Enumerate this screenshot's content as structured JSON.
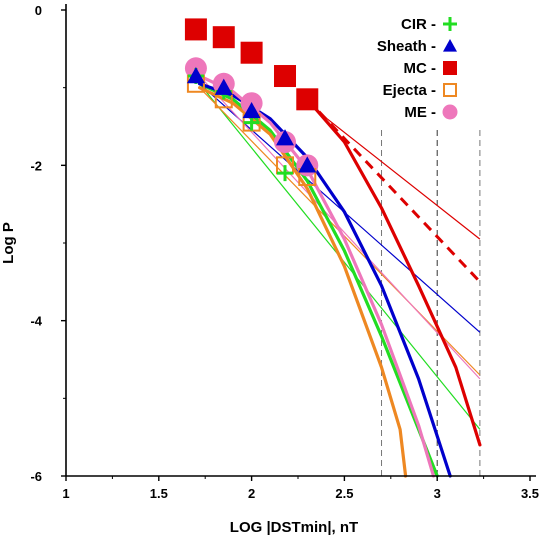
{
  "chart_data": {
    "type": "scatter",
    "title": "",
    "xlabel": "LOG |DSTmin|, nT",
    "ylabel": "Log P",
    "xlim": [
      1,
      3.5
    ],
    "ylim": [
      -6,
      0
    ],
    "x_ticks": [
      1,
      1.5,
      2,
      2.5,
      3,
      3.5
    ],
    "x_tick_labels": [
      "1",
      "1.5",
      "2",
      "2.5",
      "3",
      "3.5"
    ],
    "y_ticks": [
      0,
      -2,
      -4,
      -6
    ],
    "y_tick_labels": [
      "0",
      "-2",
      "-4",
      "-6"
    ],
    "grid": false,
    "legend_position": "top-right",
    "vertical_reference_lines": [
      2.7,
      3.0,
      3.23
    ],
    "series": [
      {
        "name": "CIR -",
        "color": "#22dd22",
        "marker": "plus",
        "points": [
          [
            1.7,
            -0.85
          ],
          [
            1.85,
            -1.05
          ],
          [
            2.0,
            -1.45
          ],
          [
            2.18,
            -2.1
          ]
        ],
        "fit_line": [
          [
            1.72,
            -0.95
          ],
          [
            3.23,
            -5.4
          ]
        ],
        "fit_curve": [
          [
            1.72,
            -0.95
          ],
          [
            1.9,
            -1.15
          ],
          [
            2.1,
            -1.55
          ],
          [
            2.3,
            -2.2
          ],
          [
            2.5,
            -3.1
          ],
          [
            2.7,
            -4.2
          ],
          [
            2.9,
            -5.4
          ],
          [
            3.0,
            -6.0
          ]
        ]
      },
      {
        "name": "Sheath -",
        "color": "#0000cc",
        "marker": "triangle",
        "points": [
          [
            1.7,
            -0.85
          ],
          [
            1.85,
            -1.0
          ],
          [
            2.0,
            -1.3
          ],
          [
            2.18,
            -1.65
          ],
          [
            2.3,
            -2.0
          ]
        ],
        "fit_line": [
          [
            1.72,
            -0.95
          ],
          [
            3.23,
            -4.15
          ]
        ],
        "fit_curve": [
          [
            1.72,
            -0.95
          ],
          [
            1.9,
            -1.1
          ],
          [
            2.1,
            -1.4
          ],
          [
            2.3,
            -1.9
          ],
          [
            2.5,
            -2.6
          ],
          [
            2.7,
            -3.55
          ],
          [
            2.9,
            -4.75
          ],
          [
            3.07,
            -6.0
          ]
        ]
      },
      {
        "name": "MC -",
        "color": "#dd0000",
        "marker": "square",
        "points": [
          [
            1.7,
            -0.25
          ],
          [
            1.85,
            -0.35
          ],
          [
            2.0,
            -0.55
          ],
          [
            2.18,
            -0.85
          ],
          [
            2.3,
            -1.15
          ]
        ],
        "fit_line": [
          [
            2.3,
            -1.2
          ],
          [
            3.23,
            -2.95
          ]
        ],
        "fit_dashed": [
          [
            2.3,
            -1.15
          ],
          [
            3.23,
            -3.5
          ]
        ],
        "fit_curve": [
          [
            2.3,
            -1.15
          ],
          [
            2.5,
            -1.7
          ],
          [
            2.7,
            -2.55
          ],
          [
            2.9,
            -3.55
          ],
          [
            3.1,
            -4.6
          ],
          [
            3.23,
            -5.6
          ]
        ]
      },
      {
        "name": "Ejecta -",
        "color": "#ee8822",
        "marker": "open-square",
        "points": [
          [
            1.7,
            -0.95
          ],
          [
            1.85,
            -1.15
          ],
          [
            2.0,
            -1.45
          ],
          [
            2.18,
            -2.0
          ],
          [
            2.3,
            -2.15
          ]
        ],
        "fit_line": [
          [
            1.72,
            -1.0
          ],
          [
            3.23,
            -4.7
          ]
        ],
        "fit_curve": [
          [
            1.72,
            -1.0
          ],
          [
            1.9,
            -1.2
          ],
          [
            2.1,
            -1.6
          ],
          [
            2.3,
            -2.3
          ],
          [
            2.5,
            -3.3
          ],
          [
            2.7,
            -4.6
          ],
          [
            2.8,
            -5.4
          ],
          [
            2.83,
            -6.0
          ]
        ]
      },
      {
        "name": "ME -",
        "color": "#ee77bb",
        "marker": "circle",
        "points": [
          [
            1.7,
            -0.75
          ],
          [
            1.85,
            -0.95
          ],
          [
            2.0,
            -1.2
          ],
          [
            2.18,
            -1.7
          ],
          [
            2.3,
            -2.0
          ]
        ],
        "fit_line": [
          [
            1.72,
            -0.85
          ],
          [
            3.23,
            -4.75
          ]
        ],
        "fit_curve": [
          [
            1.72,
            -0.85
          ],
          [
            1.9,
            -1.05
          ],
          [
            2.1,
            -1.45
          ],
          [
            2.3,
            -2.05
          ],
          [
            2.5,
            -2.95
          ],
          [
            2.7,
            -4.05
          ],
          [
            2.9,
            -5.35
          ],
          [
            2.98,
            -6.0
          ]
        ]
      }
    ]
  }
}
